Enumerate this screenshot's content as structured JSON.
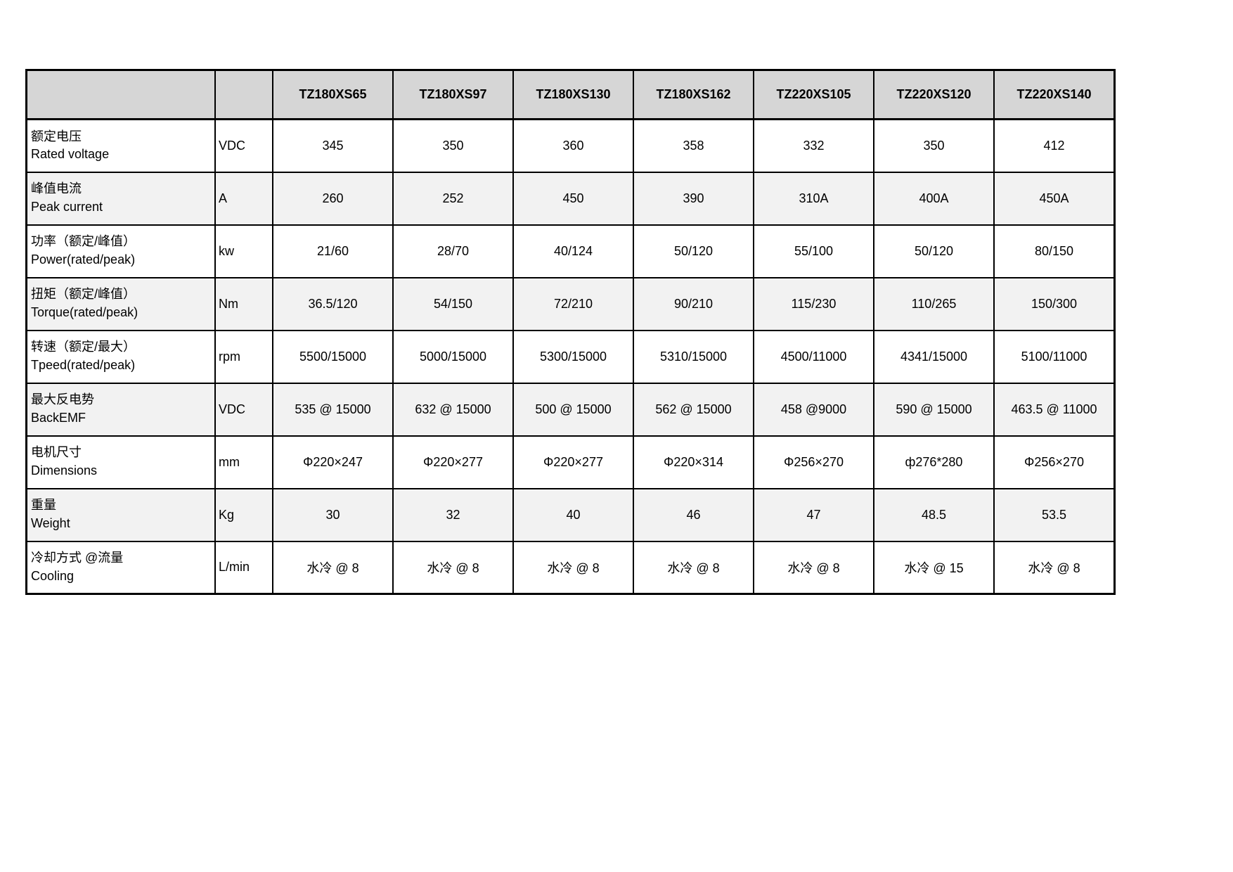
{
  "table": {
    "header": {
      "corner_label": "",
      "unit_label": "",
      "models": [
        "TZ180XS65",
        "TZ180XS97",
        "TZ180XS130",
        "TZ180XS162",
        "TZ220XS105",
        "TZ220XS120",
        "TZ220XS140"
      ]
    },
    "rows": [
      {
        "label_zh": "额定电压",
        "label_en": "Rated voltage",
        "unit": "VDC",
        "values": [
          "345",
          "350",
          "360",
          "358",
          "332",
          "350",
          "412"
        ]
      },
      {
        "label_zh": "峰值电流",
        "label_en": "Peak current",
        "unit": "A",
        "values": [
          "260",
          "252",
          "450",
          "390",
          "310A",
          "400A",
          "450A"
        ]
      },
      {
        "label_zh": "功率（额定/峰值）",
        "label_en": "Power(rated/peak)",
        "unit": "kw",
        "values": [
          "21/60",
          "28/70",
          "40/124",
          "50/120",
          "55/100",
          "50/120",
          "80/150"
        ]
      },
      {
        "label_zh": "扭矩（额定/峰值）",
        "label_en": "Torque(rated/peak)",
        "unit": "Nm",
        "values": [
          "36.5/120",
          "54/150",
          "72/210",
          "90/210",
          "115/230",
          "110/265",
          "150/300"
        ]
      },
      {
        "label_zh": "转速（额定/最大）",
        "label_en": "Tpeed(rated/peak)",
        "unit": "rpm",
        "values": [
          "5500/15000",
          "5000/15000",
          "5300/15000",
          "5310/15000",
          "4500/11000",
          "4341/15000",
          "5100/11000"
        ]
      },
      {
        "label_zh": "最大反电势",
        "label_en": "BackEMF",
        "unit": "VDC",
        "values": [
          "535 @ 15000",
          "632 @ 15000",
          "500 @ 15000",
          "562 @ 15000",
          "458 @9000",
          "590 @ 15000",
          "463.5 @ 11000"
        ]
      },
      {
        "label_zh": "电机尺寸",
        "label_en": "Dimensions",
        "unit": "mm",
        "values": [
          "Φ220×247",
          "Φ220×277",
          "Φ220×277",
          "Φ220×314",
          "Φ256×270",
          "ф276*280",
          "Φ256×270"
        ]
      },
      {
        "label_zh": "重量",
        "label_en": "Weight",
        "unit": "Kg",
        "values": [
          "30",
          "32",
          "40",
          "46",
          "47",
          "48.5",
          "53.5"
        ]
      },
      {
        "label_zh": "冷却方式 @流量",
        "label_en": "Cooling",
        "unit": "L/min",
        "values": [
          "水冷 @ 8",
          "水冷 @ 8",
          "水冷 @ 8",
          "水冷 @ 8",
          "水冷 @ 8",
          "水冷 @ 15",
          "水冷 @ 8"
        ]
      }
    ],
    "colors": {
      "header_bg": "#d6d6d6",
      "row_bg": "#ffffff",
      "row_alt_bg": "#f2f2f2",
      "border": "#000000"
    }
  }
}
